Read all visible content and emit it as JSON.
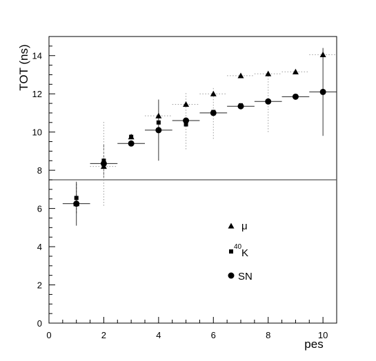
{
  "chart_data": {
    "type": "scatter",
    "xlabel": "pes",
    "ylabel": "TOT (ns)",
    "xlim": [
      0,
      10.5
    ],
    "ylim": [
      0,
      15
    ],
    "x_ticks": [
      0,
      2,
      4,
      6,
      8,
      10
    ],
    "y_ticks": [
      0,
      2,
      4,
      6,
      8,
      10,
      12,
      14
    ],
    "reference_line_y": 7.5,
    "grid": false,
    "legend_placement": "center-right",
    "series": [
      {
        "name": "μ",
        "marker": "triangle",
        "x": [
          1,
          2,
          3,
          4,
          5,
          6,
          7,
          8,
          9,
          10
        ],
        "y": [
          6.25,
          8.2,
          9.75,
          10.85,
          11.45,
          12.0,
          12.95,
          13.05,
          13.15,
          14.05
        ],
        "yerr": [
          0,
          0.9,
          0,
          0,
          0,
          0,
          0,
          0,
          0,
          0
        ],
        "xerr": [
          0,
          0.5,
          0,
          0.5,
          0.5,
          0.5,
          0.5,
          0.5,
          0.5,
          0.5
        ],
        "err_style": "dotted"
      },
      {
        "name": "40K",
        "name_superscript": "40",
        "name_base": "K",
        "marker": "square",
        "x": [
          1,
          2,
          3,
          4,
          5,
          6,
          7,
          8
        ],
        "y": [
          6.55,
          8.5,
          9.75,
          10.5,
          10.4,
          11.05,
          11.4,
          11.6
        ],
        "yerr": [
          0.8,
          0.9,
          0,
          0,
          0,
          0,
          0,
          0
        ],
        "xerr": [
          0,
          0,
          0,
          0,
          0,
          0,
          0,
          0
        ],
        "err_style": "dashed"
      },
      {
        "name": "SN",
        "marker": "circle",
        "x": [
          1,
          2,
          3,
          4,
          5,
          6,
          7,
          8,
          9,
          10
        ],
        "y": [
          6.25,
          8.35,
          9.4,
          10.1,
          10.6,
          11.0,
          11.35,
          11.6,
          11.85,
          12.1
        ],
        "yerr": [
          1.15,
          2.2,
          0,
          1.6,
          1.5,
          1.35,
          0,
          1.6,
          0,
          2.3
        ],
        "xerr": [
          0.5,
          0.5,
          0.5,
          0.5,
          0.5,
          0.5,
          0.5,
          0.5,
          0.5,
          0.5
        ],
        "err_style": "mixed"
      }
    ]
  }
}
